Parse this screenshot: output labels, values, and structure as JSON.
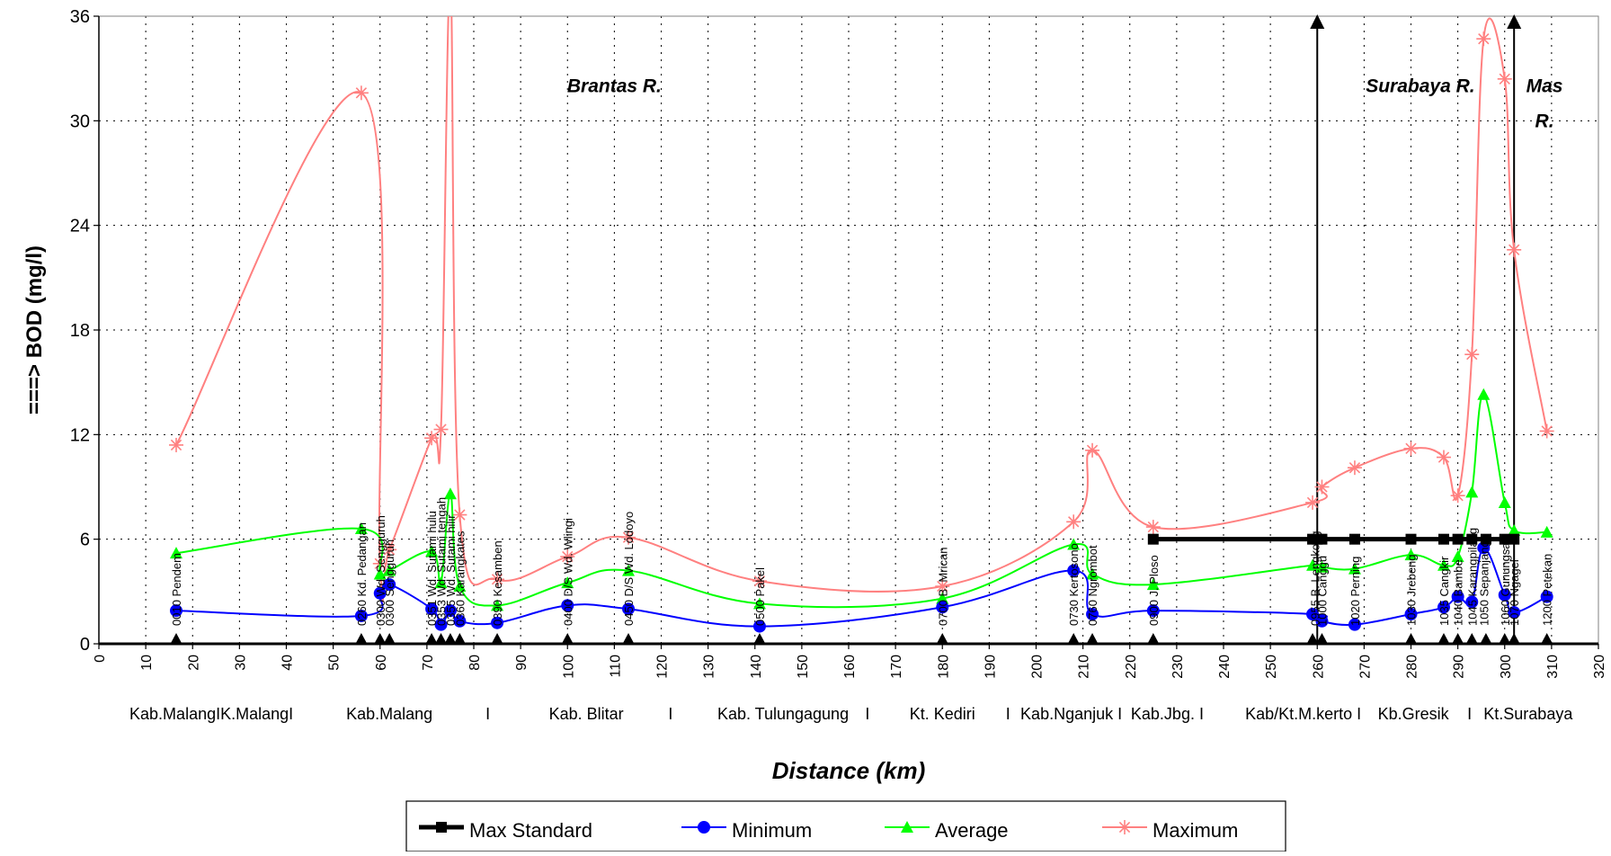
{
  "chart_data": {
    "type": "line",
    "ylabel": "===>  BOD (mg/l)",
    "xlabel": "Distance (km)",
    "xlim": [
      0,
      320
    ],
    "ylim": [
      0,
      36
    ],
    "x_ticks": [
      0,
      10,
      20,
      30,
      40,
      50,
      60,
      70,
      80,
      90,
      100,
      110,
      120,
      130,
      140,
      150,
      160,
      170,
      180,
      190,
      200,
      210,
      220,
      230,
      240,
      250,
      260,
      270,
      280,
      290,
      300,
      310,
      320
    ],
    "y_ticks": [
      0,
      6,
      12,
      18,
      24,
      30,
      36
    ],
    "grid": true,
    "legend_position": "bottom",
    "river_labels": [
      {
        "text": "Brantas R.",
        "x": 110,
        "y": 32
      },
      {
        "text": "Surabaya R.",
        "x": 282,
        "y": 32
      },
      {
        "text": "Mas",
        "x": 308.5,
        "y": 32
      },
      {
        "text": "R.",
        "x": 308.5,
        "y": 30
      }
    ],
    "region_labels": [
      {
        "text": "Kab.MalangIK.MalangI",
        "x": 24
      },
      {
        "text": "Kab.Malang",
        "x": 62
      },
      {
        "text": "I",
        "x": 83
      },
      {
        "text": "Kab. Blitar",
        "x": 104
      },
      {
        "text": "I",
        "x": 122
      },
      {
        "text": "Kab. Tulungagung",
        "x": 146
      },
      {
        "text": "I",
        "x": 164
      },
      {
        "text": "Kt. Kediri",
        "x": 180
      },
      {
        "text": "I",
        "x": 194
      },
      {
        "text": "Kab.Nganjuk I",
        "x": 207.5
      },
      {
        "text": "Kab.Jbg. I",
        "x": 228
      },
      {
        "text": "Kab/Kt.M.kerto I",
        "x": 257
      },
      {
        "text": "Kb.Gresik",
        "x": 280.5
      },
      {
        "text": "I",
        "x": 292.5
      },
      {
        "text": "Kt.Surabaya",
        "x": 305
      }
    ],
    "station_labels": [
      {
        "text": "0010 Pendem",
        "x": 16.5
      },
      {
        "text": "0260 Kd. Pedangan",
        "x": 56
      },
      {
        "text": "0300 Wd. Sengguruh",
        "x": 60
      },
      {
        "text": "0300 Sengguruh",
        "x": 62
      },
      {
        "text": "0351 Wd. Sutami hulu",
        "x": 71
      },
      {
        "text": "0353 Wd. Sutami tengah",
        "x": 73
      },
      {
        "text": "0355 Wd. Sutami hilir",
        "x": 75
      },
      {
        "text": "0360 Karangkates",
        "x": 77
      },
      {
        "text": "0390 Kesamben",
        "x": 85
      },
      {
        "text": "0400 D/S Wd. Wlingi",
        "x": 100
      },
      {
        "text": "0450 D/S Wd. Lodoyo",
        "x": 113
      },
      {
        "text": "0500 Pakel",
        "x": 141
      },
      {
        "text": "0700 B. Mrican",
        "x": 180
      },
      {
        "text": "0730 Kertosono",
        "x": 208
      },
      {
        "text": "0760 Ngrombot",
        "x": 212
      },
      {
        "text": "0900 J. Ploso",
        "x": 225
      },
      {
        "text": "0955 B. Lengkong",
        "x": 259.5
      },
      {
        "text": "1000 Canggu",
        "x": 261
      },
      {
        "text": "1020 Perning",
        "x": 268
      },
      {
        "text": "1030 Jrebeng",
        "x": 280
      },
      {
        "text": "1035 Cangkir",
        "x": 287
      },
      {
        "text": "1040 Bambe",
        "x": 290
      },
      {
        "text": "1045 Karangpilang",
        "x": 293
      },
      {
        "text": "1050 Sepanjang",
        "x": 295.5
      },
      {
        "text": "1060 Gunungsari",
        "x": 300
      },
      {
        "text": "1070 Ngagel",
        "x": 302
      },
      {
        "text": "1200 Petekan",
        "x": 309
      }
    ],
    "series": [
      {
        "name": "Max Standard",
        "color": "#000000",
        "marker": "square",
        "x": [
          225,
          259,
          260,
          261,
          268,
          280,
          287,
          290,
          293,
          296,
          300,
          302
        ],
        "values": [
          6,
          6,
          6,
          6,
          6,
          6,
          6,
          6,
          6,
          6,
          6,
          6
        ]
      },
      {
        "name": "Minimum",
        "color": "#0000ff",
        "marker": "circle",
        "x": [
          16.5,
          56,
          60,
          62,
          71,
          73,
          75,
          77,
          85,
          100,
          113,
          141,
          180,
          208,
          212,
          225,
          259,
          261,
          268,
          280,
          287,
          290,
          293,
          295.5,
          300,
          302,
          309
        ],
        "values": [
          1.9,
          1.6,
          2.9,
          3.4,
          2.0,
          1.1,
          1.9,
          1.3,
          1.2,
          2.2,
          2.0,
          1.0,
          2.1,
          4.2,
          1.7,
          1.9,
          1.7,
          1.3,
          1.1,
          1.7,
          2.1,
          2.7,
          2.4,
          5.5,
          2.8,
          1.8,
          2.7
        ]
      },
      {
        "name": "Average",
        "color": "#00ff00",
        "marker": "triangle",
        "x": [
          16.5,
          56,
          60,
          62,
          71,
          73,
          75,
          77,
          85,
          100,
          113,
          141,
          180,
          208,
          212,
          225,
          259,
          261,
          268,
          280,
          287,
          290,
          293,
          295.5,
          300,
          302,
          309
        ],
        "values": [
          5.2,
          6.6,
          4.0,
          4.2,
          5.3,
          3.5,
          8.6,
          3.3,
          2.2,
          3.5,
          4.2,
          2.3,
          2.6,
          5.7,
          4.0,
          3.4,
          4.5,
          4.4,
          4.3,
          5.1,
          4.5,
          5.0,
          8.7,
          14.3,
          8.1,
          6.5,
          6.4
        ]
      },
      {
        "name": "Maximum",
        "color": "#ff8080",
        "marker": "star",
        "x": [
          16.5,
          56,
          60,
          62,
          71,
          73,
          75,
          77,
          85,
          100,
          113,
          141,
          180,
          208,
          212,
          225,
          259,
          261,
          268,
          280,
          287,
          290,
          293,
          295.5,
          300,
          302,
          309
        ],
        "values": [
          11.4,
          31.6,
          4.6,
          5.4,
          11.8,
          12.3,
          38.0,
          7.4,
          3.7,
          5.0,
          6.1,
          3.6,
          3.3,
          7.0,
          11.1,
          6.7,
          8.1,
          9.0,
          10.1,
          11.2,
          10.7,
          8.5,
          16.6,
          34.7,
          32.4,
          22.6,
          12.2
        ]
      }
    ],
    "boundary_lines": [
      260,
      302
    ],
    "triangle_markers_x": [
      16.5,
      56,
      60,
      62,
      71,
      73,
      75,
      77,
      85,
      100,
      113,
      141,
      180,
      208,
      212,
      225,
      259,
      261,
      280,
      287,
      290,
      293,
      296,
      300,
      302,
      309
    ]
  }
}
